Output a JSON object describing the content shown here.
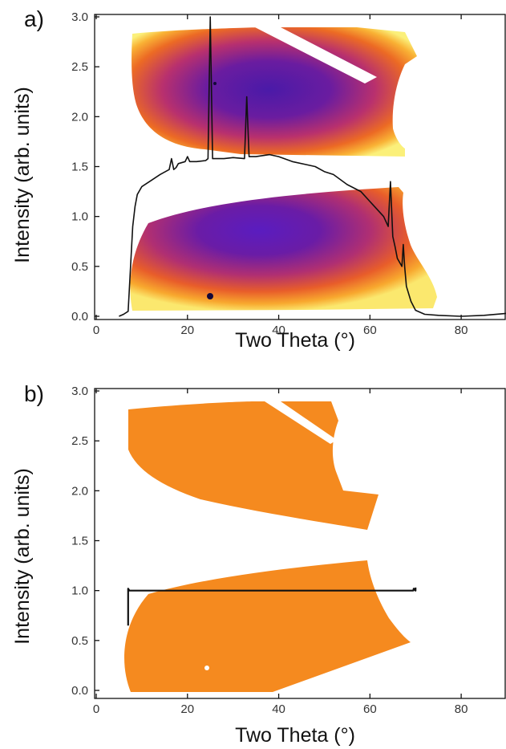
{
  "chart_data": [
    {
      "type": "line",
      "panel_label": "a)",
      "xlabel": "Two Theta (°)",
      "ylabel": "Intensity (arb. units)",
      "xlim": [
        0,
        90
      ],
      "ylim": [
        0,
        3.0
      ],
      "xticks": [
        "0",
        "20",
        "40",
        "60",
        "80"
      ],
      "xtick_values": [
        0,
        20,
        40,
        60,
        80
      ],
      "yticks": [
        "0.0",
        "0.5",
        "1.0",
        "1.5",
        "2.0",
        "2.5",
        "3.0"
      ],
      "ytick_values": [
        0,
        0.5,
        1.0,
        1.5,
        2.0,
        2.5,
        3.0
      ],
      "background": "2D detector image (inferno colormap: purple center, orange to yellow edges)",
      "colors": {
        "line": "#111111",
        "dark": "#5a18a8",
        "mid": "#c0306a",
        "orange": "#f07d1a",
        "yellow": "#fbe862"
      },
      "series": [
        {
          "x": [
            5,
            6,
            7,
            8,
            8.5,
            9,
            10,
            12,
            14,
            16,
            16.5,
            17,
            17.5,
            18,
            19.5,
            20,
            20.5,
            22,
            24,
            24.5,
            25,
            25.5,
            26,
            28,
            30,
            32.5,
            33,
            33.5,
            35,
            38,
            40,
            43,
            46,
            48,
            50,
            52,
            55,
            58,
            60,
            62,
            63,
            64,
            64.5,
            65,
            65.5,
            66,
            67,
            67.3,
            67.6,
            68,
            69,
            70,
            72,
            75,
            80,
            85,
            90
          ],
          "y": [
            0.0,
            0.02,
            0.05,
            0.9,
            1.1,
            1.22,
            1.3,
            1.36,
            1.42,
            1.47,
            1.58,
            1.47,
            1.49,
            1.53,
            1.55,
            1.6,
            1.55,
            1.55,
            1.56,
            1.58,
            3.0,
            1.58,
            1.58,
            1.58,
            1.59,
            1.58,
            2.2,
            1.6,
            1.6,
            1.62,
            1.6,
            1.55,
            1.52,
            1.5,
            1.45,
            1.42,
            1.32,
            1.25,
            1.15,
            1.05,
            1.0,
            0.9,
            1.35,
            0.8,
            0.7,
            0.58,
            0.5,
            0.72,
            0.5,
            0.3,
            0.15,
            0.06,
            0.02,
            0.01,
            0.0,
            0.01,
            0.03
          ]
        }
      ]
    },
    {
      "type": "line",
      "panel_label": "b)",
      "xlabel": "Two Theta (°)",
      "ylabel": "Intensity (arb. units)",
      "xlim": [
        0,
        90
      ],
      "ylim": [
        0,
        3.0
      ],
      "xticks": [
        "0",
        "20",
        "40",
        "60",
        "80"
      ],
      "xtick_values": [
        0,
        20,
        40,
        60,
        80
      ],
      "yticks": [
        "0.0",
        "0.5",
        "1.0",
        "1.5",
        "2.0",
        "2.5",
        "3.0"
      ],
      "ytick_values": [
        0,
        0.5,
        1.0,
        1.5,
        2.0,
        2.5,
        3.0
      ],
      "background": "2D detector image (uniform orange)",
      "colors": {
        "line": "#111111",
        "orange": "#f58a1f"
      },
      "series": [
        {
          "x": [
            7,
            7,
            7.3,
            10,
            20,
            30,
            40,
            50,
            60,
            69.5,
            69.6,
            70,
            70
          ],
          "y": [
            0.65,
            1.02,
            1.0,
            1.0,
            1.0,
            1.0,
            1.0,
            1.0,
            1.0,
            1.0,
            1.02,
            1.0,
            1.03
          ]
        }
      ]
    }
  ]
}
